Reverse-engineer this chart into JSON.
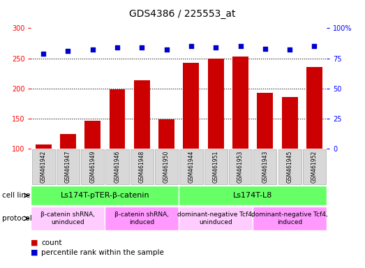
{
  "title": "GDS4386 / 225553_at",
  "samples": [
    "GSM461942",
    "GSM461947",
    "GSM461949",
    "GSM461946",
    "GSM461948",
    "GSM461950",
    "GSM461944",
    "GSM461951",
    "GSM461953",
    "GSM461943",
    "GSM461945",
    "GSM461952"
  ],
  "counts": [
    107,
    125,
    147,
    198,
    213,
    149,
    242,
    249,
    253,
    193,
    186,
    235
  ],
  "percentiles": [
    79,
    81,
    82,
    84,
    84,
    82,
    85,
    84,
    85,
    83,
    82,
    85
  ],
  "ymin": 100,
  "ymax": 300,
  "yticks": [
    100,
    150,
    200,
    250,
    300
  ],
  "right_yticks": [
    0,
    25,
    50,
    75,
    100
  ],
  "bar_color": "#cc0000",
  "dot_color": "#0000cc",
  "cell_line_groups": [
    {
      "label": "Ls174T-pTER-β-catenin",
      "start": 0,
      "end": 6,
      "color": "#66ff66"
    },
    {
      "label": "Ls174T-L8",
      "start": 6,
      "end": 12,
      "color": "#66ff66"
    }
  ],
  "protocol_groups": [
    {
      "label": "β-catenin shRNA,\nuninduced",
      "start": 0,
      "end": 3,
      "color": "#ffccff"
    },
    {
      "label": "β-catenin shRNA,\ninduced",
      "start": 3,
      "end": 6,
      "color": "#ff99ff"
    },
    {
      "label": "dominant-negative Tcf4,\nuninduced",
      "start": 6,
      "end": 9,
      "color": "#ffccff"
    },
    {
      "label": "dominant-negative Tcf4,\ninduced",
      "start": 9,
      "end": 12,
      "color": "#ff99ff"
    }
  ],
  "legend_count_color": "#cc0000",
  "legend_pct_color": "#0000cc",
  "bg_color": "#ffffff",
  "plot_bg": "#ffffff",
  "grid_color": "#000000",
  "tick_label_bg": "#d8d8d8",
  "tick_label_edge": "#aaaaaa"
}
